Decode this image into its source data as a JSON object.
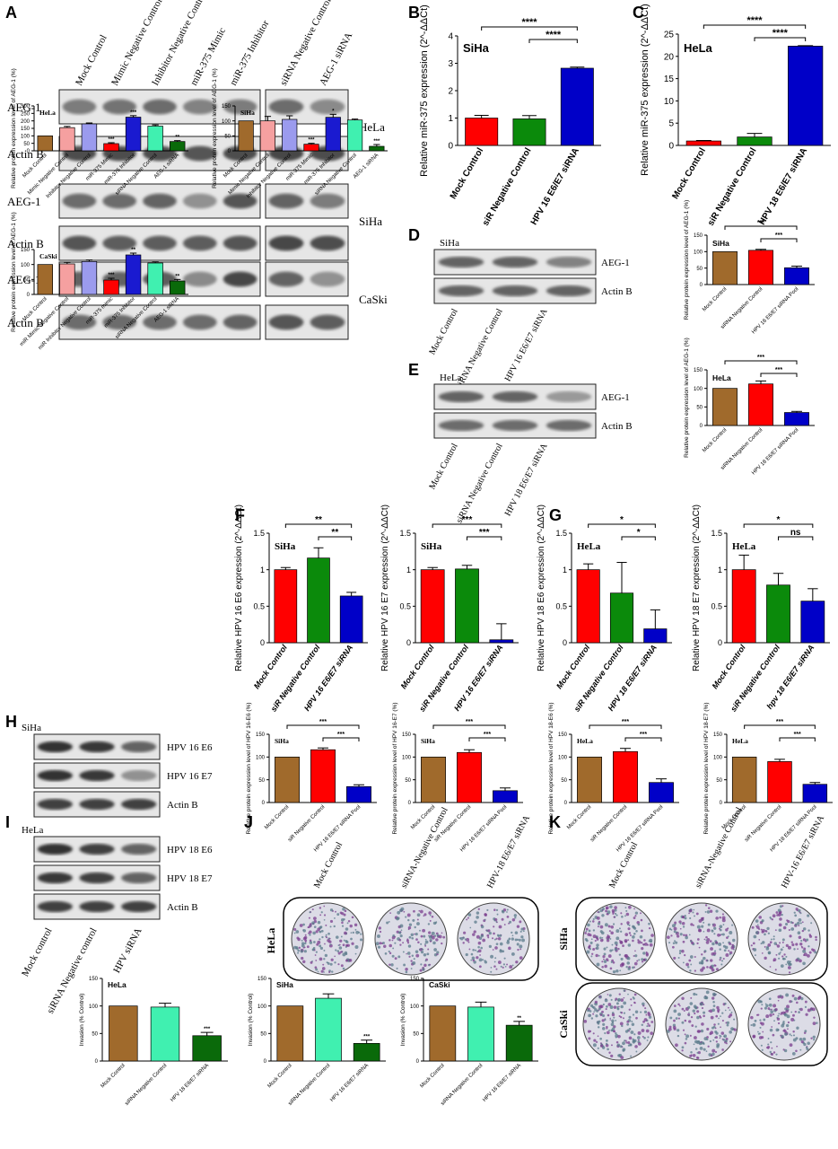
{
  "panel_letters": [
    "A",
    "B",
    "C",
    "D",
    "E",
    "F",
    "G",
    "H",
    "I",
    "J",
    "K"
  ],
  "blots": {
    "A": {
      "lanes_left": [
        "Mock Control",
        "Mimic Negative Control",
        "Inhibitor Negative Control",
        "miR-375 Mimic",
        "miR-375 Inhibitor"
      ],
      "lanes_right": [
        "siRNA Negative Control",
        "AEG-1 siRNA"
      ],
      "rows": [
        {
          "label": "AEG-1",
          "cell": "HeLa",
          "int": [
            0.45,
            0.5,
            0.55,
            0.4,
            0.45
          ],
          "intR": [
            0.55,
            0.35
          ]
        },
        {
          "label": "Actin B",
          "cell": "",
          "int": [
            0.75,
            0.75,
            0.75,
            0.7,
            0.75
          ],
          "intR": [
            0.8,
            0.75
          ]
        },
        {
          "label": "AEG-1",
          "cell": "SiHa",
          "int": [
            0.55,
            0.55,
            0.6,
            0.3,
            0.7
          ],
          "intR": [
            0.6,
            0.45
          ]
        },
        {
          "label": "Actin B",
          "cell": "",
          "int": [
            0.7,
            0.65,
            0.65,
            0.65,
            0.7
          ],
          "intR": [
            0.8,
            0.75
          ]
        },
        {
          "label": "AEG-1",
          "cell": "CaSki",
          "int": [
            0.6,
            0.6,
            0.65,
            0.35,
            0.8
          ],
          "intR": [
            0.6,
            0.3
          ]
        },
        {
          "label": "Actin B",
          "cell": "",
          "int": [
            0.55,
            0.55,
            0.55,
            0.55,
            0.6
          ],
          "intR": [
            0.7,
            0.65
          ]
        }
      ]
    },
    "D": {
      "cell": "SiHa",
      "rows": [
        {
          "label": "AEG-1",
          "int": [
            0.6,
            0.6,
            0.4
          ]
        },
        {
          "label": "Actin B",
          "int": [
            0.6,
            0.6,
            0.6
          ]
        }
      ],
      "lanes": [
        "Mock Control",
        "siRNA Negative Control",
        "HPV 16 E6/E7 siRNA"
      ]
    },
    "E": {
      "cell": "HeLa",
      "rows": [
        {
          "label": "AEG-1",
          "int": [
            0.6,
            0.6,
            0.25
          ]
        },
        {
          "label": "Actin B",
          "int": [
            0.55,
            0.55,
            0.55
          ]
        }
      ],
      "lanes": [
        "Mock Control",
        "siRNA Negative Control",
        "HPV 18 E6/E7 siRNA"
      ]
    },
    "H": {
      "cell": "SiHa",
      "rows": [
        {
          "label": "HPV 16 E6",
          "int": [
            0.95,
            0.9,
            0.6
          ]
        },
        {
          "label": "HPV 16 E7",
          "int": [
            0.95,
            0.9,
            0.3
          ]
        },
        {
          "label": "Actin B",
          "int": [
            0.85,
            0.85,
            0.85
          ]
        }
      ]
    },
    "I": {
      "cell": "HeLa",
      "rows": [
        {
          "label": "HPV 18 E6",
          "int": [
            0.95,
            0.85,
            0.6
          ]
        },
        {
          "label": "HPV 18 E7",
          "int": [
            0.9,
            0.85,
            0.6
          ]
        },
        {
          "label": "Actin B",
          "int": [
            0.85,
            0.85,
            0.85
          ]
        }
      ],
      "lanes": [
        "Mock control",
        "siRNA Negative control",
        "HPV siRNA"
      ]
    }
  },
  "plates": {
    "J": {
      "cell": "HeLa",
      "lanes": [
        "Mock Control",
        "siRNA-Negative Control",
        "HPV-18 E6/E7 siRNA"
      ]
    },
    "K": {
      "cells": [
        "SiHa",
        "CaSki"
      ],
      "lanes": [
        "Mock Control",
        "siRNA-Negative Control",
        "HPV-16 E6/E7 siRNA"
      ]
    }
  },
  "colors": {
    "red": "#ff0000",
    "green": "#0b8a0b",
    "blue": "#0000c8",
    "brown": "#a06a2c",
    "darkgreen": "#0a6a0a",
    "teal": "#40f0b0",
    "pink": "#f5a0a0",
    "lavender": "#9b9bee",
    "violet": "#1a1ad0"
  },
  "chart_data": [
    {
      "id": "A1",
      "type": "bar",
      "cell": "HeLa",
      "ylabel": "Relative protein expression level of AEG-1 (%)",
      "ylim": [
        0,
        300
      ],
      "yticks": [
        0,
        50,
        100,
        150,
        200,
        250,
        300
      ],
      "categories": [
        "Mock Control",
        "Mimic Negative Control",
        "Inhibitor Negative Control",
        "miR-375 Mimic",
        "miR-375 Inhibitor",
        "siRNA Negative Control",
        "AEG-1 siRNA"
      ],
      "values": [
        100,
        155,
        180,
        48,
        225,
        165,
        62
      ],
      "errors": [
        0,
        8,
        6,
        6,
        10,
        8,
        6
      ],
      "sig": [
        "",
        "",
        "",
        "***",
        "***",
        "",
        "**"
      ],
      "colors": [
        "#a06a2c",
        "#f5a0a0",
        "#9b9bee",
        "#ff0000",
        "#1a1ad0",
        "#40f0b0",
        "#0a6a0a"
      ]
    },
    {
      "id": "A2",
      "type": "bar",
      "cell": "SiHa",
      "ylabel": "Relative protein expression level of AEG-1 (%)",
      "ylim": [
        0,
        150
      ],
      "yticks": [
        0,
        50,
        100,
        150
      ],
      "categories": [
        "Mock Control",
        "Mimic Negative Control",
        "Inhibitor Negative Control",
        "miR-375 Mimic",
        "miR-375 Inhibitor",
        "siRNA Negative Control",
        "AEG-1 siRNA"
      ],
      "values": [
        100,
        100,
        105,
        22,
        112,
        103,
        15
      ],
      "errors": [
        0,
        15,
        12,
        3,
        10,
        3,
        6
      ],
      "sig": [
        "",
        "",
        "",
        "***",
        "*",
        "",
        "***"
      ],
      "colors": [
        "#a06a2c",
        "#f5a0a0",
        "#9b9bee",
        "#ff0000",
        "#1a1ad0",
        "#40f0b0",
        "#0a6a0a"
      ]
    },
    {
      "id": "A3",
      "type": "bar",
      "cell": "CaSki",
      "ylabel": "Relative protein expression level of AEG-1 (%)",
      "ylim": [
        0,
        150
      ],
      "yticks": [
        0,
        50,
        100,
        150
      ],
      "categories": [
        "Mock Control",
        "miR Mimic Negative Control",
        "miR Inhibitor Negative Control",
        "miR-375 mimic",
        "miR-375 Inhibitor",
        "siRNA Negative Control",
        "AEG-1 siRNA"
      ],
      "values": [
        100,
        102,
        110,
        48,
        132,
        105,
        45
      ],
      "errors": [
        0,
        5,
        5,
        6,
        6,
        4,
        5
      ],
      "sig": [
        "",
        "",
        "",
        "***",
        "**",
        "",
        "**"
      ],
      "colors": [
        "#a06a2c",
        "#f5a0a0",
        "#9b9bee",
        "#ff0000",
        "#1a1ad0",
        "#40f0b0",
        "#0a6a0a"
      ]
    },
    {
      "id": "B",
      "type": "bar",
      "cell": "SiHa",
      "ylabel": "Relative miR-375 expression (2^-ΔΔCt)",
      "ylim": [
        0,
        4
      ],
      "yticks": [
        0,
        1,
        2,
        3,
        4
      ],
      "categories": [
        "Mock Control",
        "siR Negative Control",
        "HPV 16 E6/E7 siRNA"
      ],
      "values": [
        1.0,
        0.97,
        2.82
      ],
      "errors": [
        0.1,
        0.12,
        0.04
      ],
      "colors": [
        "#ff0000",
        "#0b8a0b",
        "#0000c8"
      ],
      "brackets": [
        {
          "from": 0,
          "to": 2,
          "label": "****",
          "level": 0
        },
        {
          "from": 1,
          "to": 2,
          "label": "****",
          "level": 1
        }
      ]
    },
    {
      "id": "C",
      "type": "bar",
      "cell": "HeLa",
      "ylabel": "Relative miR-375 expression (2^-ΔΔCt)",
      "ylim": [
        0,
        25
      ],
      "yticks": [
        0,
        5,
        10,
        15,
        20,
        25
      ],
      "categories": [
        "Mock Control",
        "siR Negative Control",
        "HPV 18 E6/E7 siRNA"
      ],
      "values": [
        1.0,
        1.9,
        22.3
      ],
      "errors": [
        0.1,
        0.8,
        0.1
      ],
      "colors": [
        "#ff0000",
        "#0b8a0b",
        "#0000c8"
      ],
      "brackets": [
        {
          "from": 0,
          "to": 2,
          "label": "****",
          "level": 0
        },
        {
          "from": 1,
          "to": 2,
          "label": "****",
          "level": 1
        }
      ]
    },
    {
      "id": "D",
      "type": "bar",
      "cell": "SiHa",
      "ylabel": "Relative protein expression level of AEG-1 (%)",
      "ylim": [
        0,
        150
      ],
      "yticks": [
        0,
        50,
        100,
        150
      ],
      "categories": [
        "Mock Control",
        "siRNA Negative Control",
        "HPV 16 E6/E7 siRNA Pool"
      ],
      "values": [
        100,
        104,
        51
      ],
      "errors": [
        0,
        3,
        5
      ],
      "colors": [
        "#a06a2c",
        "#ff0000",
        "#0000c8"
      ],
      "brackets": [
        {
          "from": 0,
          "to": 2,
          "label": "***",
          "level": 0
        },
        {
          "from": 1,
          "to": 2,
          "label": "***",
          "level": 1
        }
      ]
    },
    {
      "id": "E",
      "type": "bar",
      "cell": "HeLa",
      "ylabel": "Relative protein expression level of AEG-1 (%)",
      "ylim": [
        0,
        150
      ],
      "yticks": [
        0,
        50,
        100,
        150
      ],
      "categories": [
        "Mock Control",
        "siRNA Negative Control",
        "HPV 18 E6/E7 siRNA Pool"
      ],
      "values": [
        100,
        112,
        35
      ],
      "errors": [
        0,
        8,
        3
      ],
      "colors": [
        "#a06a2c",
        "#ff0000",
        "#0000c8"
      ],
      "brackets": [
        {
          "from": 0,
          "to": 2,
          "label": "***",
          "level": 0
        },
        {
          "from": 1,
          "to": 2,
          "label": "***",
          "level": 1
        }
      ]
    },
    {
      "id": "F1",
      "type": "bar",
      "cell": "SiHa",
      "ylabel": "Relative HPV 16 E6 expression (2^-ΔΔCt)",
      "ylim": [
        0,
        1.5
      ],
      "yticks": [
        0.0,
        0.5,
        1.0,
        1.5
      ],
      "categories": [
        "Mock Control",
        "siR Negative Control",
        "HPV 16 E6/E7 siRNA"
      ],
      "values": [
        1.0,
        1.16,
        0.64
      ],
      "errors": [
        0.03,
        0.14,
        0.05
      ],
      "colors": [
        "#ff0000",
        "#0b8a0b",
        "#0000c8"
      ],
      "brackets": [
        {
          "from": 0,
          "to": 2,
          "label": "**",
          "level": 0
        },
        {
          "from": 1,
          "to": 2,
          "label": "**",
          "level": 1
        }
      ]
    },
    {
      "id": "F2",
      "type": "bar",
      "cell": "SiHa",
      "ylabel": "Relative HPV 16 E7 expression (2^-ΔΔCt)",
      "ylim": [
        0,
        1.5
      ],
      "yticks": [
        0.0,
        0.5,
        1.0,
        1.5
      ],
      "categories": [
        "Mock Control",
        "siR Negative Control",
        "HPV 16 E6/E7 siRNA"
      ],
      "values": [
        1.0,
        1.01,
        0.04
      ],
      "errors": [
        0.03,
        0.05,
        0.22
      ],
      "colors": [
        "#ff0000",
        "#0b8a0b",
        "#0000c8"
      ],
      "brackets": [
        {
          "from": 0,
          "to": 2,
          "label": "***",
          "level": 0
        },
        {
          "from": 1,
          "to": 2,
          "label": "***",
          "level": 1
        }
      ]
    },
    {
      "id": "G1",
      "type": "bar",
      "cell": "HeLa",
      "ylabel": "Relative HPV 18 E6 expression (2^-ΔΔCt)",
      "ylim": [
        0,
        1.5
      ],
      "yticks": [
        0.0,
        0.5,
        1.0,
        1.5
      ],
      "categories": [
        "Mock Control",
        "siR Negative Control",
        "HPV 18 E6/E7 siRNA"
      ],
      "values": [
        1.0,
        0.68,
        0.19
      ],
      "errors": [
        0.08,
        0.42,
        0.26
      ],
      "colors": [
        "#ff0000",
        "#0b8a0b",
        "#0000c8"
      ],
      "brackets": [
        {
          "from": 0,
          "to": 2,
          "label": "*",
          "level": 0
        },
        {
          "from": 1,
          "to": 2,
          "label": "*",
          "level": 1
        }
      ]
    },
    {
      "id": "G2",
      "type": "bar",
      "cell": "HeLa",
      "ylabel": "Relative HPV 18 E7 expression (2^-ΔΔCt)",
      "ylim": [
        0,
        1.5
      ],
      "yticks": [
        0.0,
        0.5,
        1.0,
        1.5
      ],
      "categories": [
        "Mock Control",
        "siR Negative Control",
        "hpv 18 E6/E7 siRNA"
      ],
      "values": [
        1.0,
        0.79,
        0.57
      ],
      "errors": [
        0.2,
        0.16,
        0.17
      ],
      "colors": [
        "#ff0000",
        "#0b8a0b",
        "#0000c8"
      ],
      "brackets": [
        {
          "from": 0,
          "to": 2,
          "label": "*",
          "level": 0
        },
        {
          "from": 1,
          "to": 2,
          "label": "ns",
          "level": 1
        }
      ]
    },
    {
      "id": "H1",
      "type": "bar",
      "cell": "SiHa",
      "ylabel": "Relative protein expression level of HPV 16-E6 (%)",
      "ylim": [
        0,
        150
      ],
      "yticks": [
        0,
        50,
        100,
        150
      ],
      "categories": [
        "Mock Control",
        "siR Negative Control",
        "HPV 16 E6/E7 siRNA Pool"
      ],
      "values": [
        100,
        116,
        35
      ],
      "errors": [
        0,
        4,
        4
      ],
      "colors": [
        "#a06a2c",
        "#ff0000",
        "#0000c8"
      ],
      "brackets": [
        {
          "from": 0,
          "to": 2,
          "label": "***",
          "level": 0
        },
        {
          "from": 1,
          "to": 2,
          "label": "***",
          "level": 1
        }
      ]
    },
    {
      "id": "H2",
      "type": "bar",
      "cell": "SiHa",
      "ylabel": "Relative protein expression level of HPV 16-E7 (%)",
      "ylim": [
        0,
        150
      ],
      "yticks": [
        0,
        50,
        100,
        150
      ],
      "categories": [
        "Mock Control",
        "siR Negative Control",
        "HPV 16 E6/E7 siRNA Pool"
      ],
      "values": [
        100,
        110,
        26
      ],
      "errors": [
        0,
        6,
        6
      ],
      "colors": [
        "#a06a2c",
        "#ff0000",
        "#0000c8"
      ],
      "brackets": [
        {
          "from": 0,
          "to": 2,
          "label": "***",
          "level": 0
        },
        {
          "from": 1,
          "to": 2,
          "label": "***",
          "level": 1
        }
      ]
    },
    {
      "id": "H3",
      "type": "bar",
      "cell": "HeLa",
      "ylabel": "Relative protein expression level of HPV 18-E6 (%)",
      "ylim": [
        0,
        150
      ],
      "yticks": [
        0,
        50,
        100,
        150
      ],
      "categories": [
        "Mock Control",
        "siR Negative Control",
        "HPV 18 E6/E7 siRNA Pool"
      ],
      "values": [
        100,
        112,
        44
      ],
      "errors": [
        0,
        7,
        8
      ],
      "colors": [
        "#a06a2c",
        "#ff0000",
        "#0000c8"
      ],
      "brackets": [
        {
          "from": 0,
          "to": 2,
          "label": "***",
          "level": 0
        },
        {
          "from": 1,
          "to": 2,
          "label": "***",
          "level": 1
        }
      ]
    },
    {
      "id": "H4",
      "type": "bar",
      "cell": "HeLa",
      "ylabel": "Relative protein expression level of HPV 18-E7 (%)",
      "ylim": [
        0,
        150
      ],
      "yticks": [
        0,
        50,
        100,
        150
      ],
      "categories": [
        "Mock Control",
        "siR Negative Control",
        "HPV 18 E6/E7 siRNA Pool"
      ],
      "values": [
        100,
        90,
        40
      ],
      "errors": [
        0,
        5,
        4
      ],
      "colors": [
        "#a06a2c",
        "#ff0000",
        "#0000c8"
      ],
      "brackets": [
        {
          "from": 0,
          "to": 2,
          "label": "***",
          "level": 0
        },
        {
          "from": 1,
          "to": 2,
          "label": "***",
          "level": 1
        }
      ]
    },
    {
      "id": "L1",
      "type": "bar",
      "cell": "HeLa",
      "ylabel": "Invasion (% Control)",
      "ylim": [
        0,
        150
      ],
      "yticks": [
        0,
        50,
        100,
        150
      ],
      "categories": [
        "Mock Control",
        "siRNA Negative Control",
        "HPV 18 E6/E7 siRNA"
      ],
      "values": [
        100,
        98,
        46
      ],
      "errors": [
        0,
        7,
        6
      ],
      "sig": [
        "",
        "",
        "***"
      ],
      "colors": [
        "#a06a2c",
        "#40f0b0",
        "#0a6a0a"
      ]
    },
    {
      "id": "L2",
      "type": "bar",
      "cell": "SiHa",
      "ylabel": "Invasion (% Control)",
      "ylim": [
        0,
        150
      ],
      "yticks": [
        0,
        50,
        100,
        150
      ],
      "categories": [
        "Mock Control",
        "siRNA Negative Control",
        "HPV 16 E6/E7 siRNA"
      ],
      "values": [
        100,
        114,
        32
      ],
      "errors": [
        0,
        8,
        6
      ],
      "sig": [
        "",
        "",
        "***"
      ],
      "colors": [
        "#a06a2c",
        "#40f0b0",
        "#0a6a0a"
      ]
    },
    {
      "id": "L3",
      "type": "bar",
      "cell": "CaSki",
      "ylabel": "Invasion (% Control)",
      "ylim": [
        0,
        150
      ],
      "yticks": [
        0,
        50,
        100,
        150
      ],
      "categories": [
        "Mock Control",
        "siRNA Negative Control",
        "HPV 16 E6/E7 siRNA"
      ],
      "values": [
        100,
        98,
        65
      ],
      "errors": [
        0,
        9,
        7
      ],
      "sig": [
        "",
        "",
        "**"
      ],
      "colors": [
        "#a06a2c",
        "#40f0b0",
        "#0a6a0a"
      ]
    }
  ]
}
